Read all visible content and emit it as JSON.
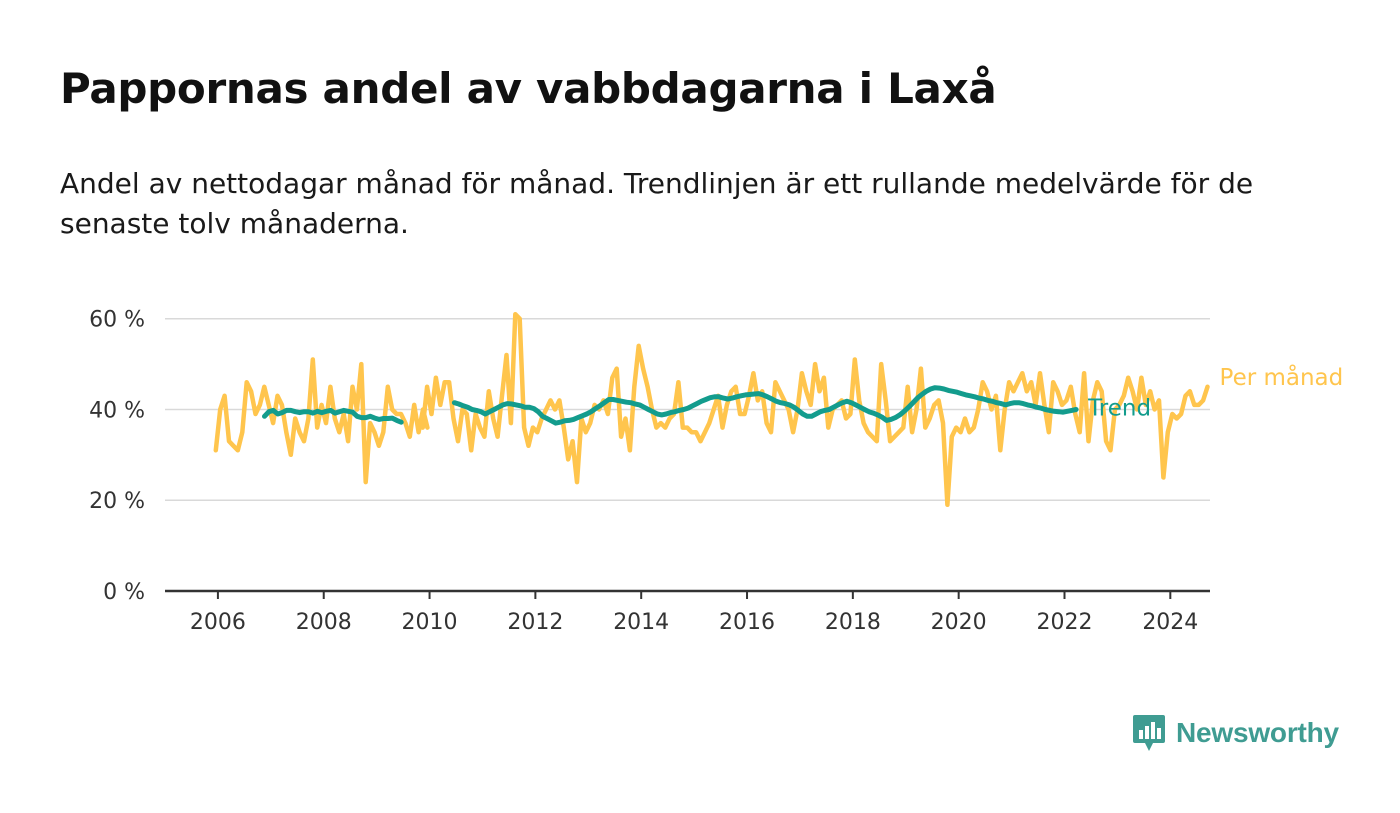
{
  "header": {
    "title": "Pappornas andel av vabbdagarna i Laxå",
    "subtitle": "Andel av nettodagar månad för månad. Trendlinjen är ett rullande medelvärde för de senaste tolv månaderna."
  },
  "brand": {
    "name": "Newsworthy",
    "color": "#3f9c92"
  },
  "chart_data": {
    "type": "line",
    "x_unit": "year (decimal)",
    "x_ticks": [
      2006,
      2008,
      2010,
      2012,
      2014,
      2016,
      2018,
      2020,
      2022,
      2024
    ],
    "x_tick_labels": [
      "2006",
      "2008",
      "2010",
      "2012",
      "2014",
      "2016",
      "2018",
      "2020",
      "2022",
      "2024"
    ],
    "xlim": [
      2005.0,
      2024.75
    ],
    "y_ticks": [
      0,
      20,
      40,
      60
    ],
    "y_tick_labels": [
      "0 %",
      "20 %",
      "40 %",
      "60 %"
    ],
    "ylim": [
      0,
      65
    ],
    "grid": true,
    "series": [
      {
        "name": "Per månad",
        "color": "#ffc54d",
        "segments": [
          {
            "start": 2005.96,
            "values": [
              31,
              40,
              43,
              33,
              32,
              31,
              35,
              46,
              44,
              39,
              41,
              45,
              41,
              37,
              43,
              41,
              35,
              30,
              38,
              35,
              33,
              38,
              51,
              36,
              41,
              37,
              45,
              38,
              35,
              39,
              33,
              45,
              40,
              50,
              24,
              37,
              35,
              32,
              35,
              45,
              40,
              39,
              39,
              37,
              34,
              41,
              35,
              40,
              36
            ]
          },
          {
            "start": 2009.87,
            "values": [
              36,
              45,
              39,
              47,
              41,
              46,
              46,
              38,
              33,
              40,
              39,
              31,
              39,
              36,
              34,
              44,
              38,
              34,
              43,
              52,
              37,
              61,
              60,
              36,
              32,
              36,
              35,
              38,
              40,
              42,
              40,
              42,
              36,
              29,
              33,
              24,
              38,
              35,
              37,
              41,
              40,
              42,
              39,
              47,
              49,
              34,
              38,
              31,
              45,
              54,
              49,
              45,
              40,
              36,
              37,
              36,
              38,
              39,
              46,
              36,
              36,
              35,
              35,
              33,
              35,
              37,
              40,
              43,
              36,
              41,
              44,
              45,
              39,
              39,
              43,
              48,
              42,
              44,
              37,
              35,
              46,
              44,
              42,
              40,
              35,
              40,
              48,
              44,
              41,
              50,
              44,
              47,
              36,
              40,
              41,
              42,
              38,
              39,
              51,
              42,
              37,
              35,
              34,
              33,
              50,
              42,
              33,
              34,
              35,
              36,
              45,
              35,
              40,
              49,
              36,
              38,
              41,
              42,
              37,
              19,
              34,
              36,
              35,
              38,
              35,
              36,
              40,
              46,
              44,
              40,
              43,
              31,
              40,
              46,
              44,
              46,
              48,
              44,
              46,
              41,
              48,
              41,
              35,
              46,
              44,
              41,
              42,
              45,
              39,
              35,
              48,
              33,
              42,
              46,
              44,
              33,
              31,
              40,
              41,
              43,
              47,
              44,
              40,
              47,
              41,
              44,
              40,
              42,
              25,
              35,
              39,
              38,
              39,
              43,
              44,
              41,
              41,
              42,
              45
            ]
          }
        ]
      },
      {
        "name": "Trend",
        "color": "#139c8d",
        "segments": [
          {
            "start": 2006.88,
            "values": [
              38.5,
              39.5,
              39.8,
              39,
              39.3,
              39.8,
              39.8,
              39.5,
              39.3,
              39.5,
              39.5,
              39.2,
              39.6,
              39.3,
              39.6,
              39.8,
              39.2,
              39.5,
              39.8,
              39.6,
              39.4,
              38.5,
              38.2,
              38.2,
              38.5,
              38.1,
              37.8,
              38,
              38,
              38.1,
              37.6,
              37.2
            ]
          },
          {
            "start": 2010.47,
            "values": [
              41.5,
              41.2,
              40.8,
              40.5,
              40,
              39.8,
              39.5,
              39,
              39.5,
              40,
              40.5,
              41,
              41.3,
              41.2,
              41,
              40.8,
              40.5,
              40.5,
              40.2,
              39.5,
              38.5,
              38,
              37.5,
              37,
              37.2,
              37.5,
              37.6,
              37.8,
              38.2,
              38.6,
              39,
              39.5,
              40.2,
              40.8,
              41.5,
              42.2,
              42.2,
              42,
              41.8,
              41.6,
              41.5,
              41.2,
              41,
              40.5,
              40,
              39.5,
              39,
              38.8,
              39,
              39.3,
              39.5,
              39.8,
              40,
              40.3,
              40.8,
              41.3,
              41.8,
              42.2,
              42.6,
              42.8,
              42.8,
              42.5,
              42.3,
              42.5,
              42.8,
              43,
              43.2,
              43.3,
              43.4,
              43.5,
              43.2,
              42.8,
              42.3,
              41.8,
              41.5,
              41.3,
              41,
              40.5,
              39.8,
              39,
              38.5,
              38.5,
              39,
              39.5,
              39.8,
              40,
              40.5,
              41,
              41.5,
              41.8,
              41.5,
              41,
              40.5,
              40,
              39.5,
              39.2,
              38.8,
              38.3,
              37.6,
              37.8,
              38.2,
              38.8,
              39.6,
              40.5,
              41.5,
              42.5,
              43.3,
              44,
              44.5,
              44.8,
              44.7,
              44.5,
              44.2,
              44,
              43.8,
              43.5,
              43.2,
              43,
              42.8,
              42.5,
              42.3,
              42,
              41.8,
              41.5,
              41.3,
              41,
              41.3,
              41.5,
              41.5,
              41.3,
              41,
              40.8,
              40.5,
              40.3,
              40,
              39.8,
              39.6,
              39.5,
              39.4,
              39.6,
              39.8,
              40
            ]
          }
        ]
      }
    ]
  }
}
